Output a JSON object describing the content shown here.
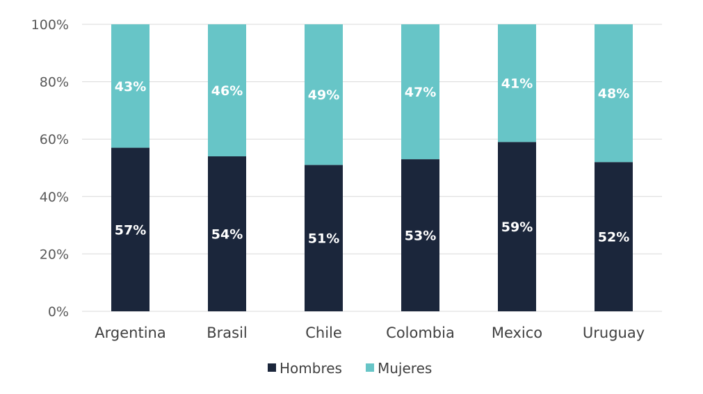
{
  "chart_data": {
    "type": "bar",
    "stacked": true,
    "stack_mode": "percent",
    "categories": [
      "Argentina",
      "Brasil",
      "Chile",
      "Colombia",
      "Mexico",
      "Uruguay"
    ],
    "series": [
      {
        "name": "Hombres",
        "color": "#1b263b",
        "values": [
          57,
          54,
          51,
          53,
          59,
          52
        ]
      },
      {
        "name": "Mujeres",
        "color": "#67c5c7",
        "values": [
          43,
          46,
          49,
          47,
          41,
          48
        ]
      }
    ],
    "data_labels": {
      "Hombres": [
        "57%",
        "54%",
        "51%",
        "53%",
        "59%",
        "52%"
      ],
      "Mujeres": [
        "43%",
        "46%",
        "49%",
        "47%",
        "41%",
        "48%"
      ]
    },
    "ylim": [
      0,
      100
    ],
    "yticks": [
      0,
      20,
      40,
      60,
      80,
      100
    ],
    "ytick_labels": [
      "0%",
      "20%",
      "40%",
      "60%",
      "80%",
      "100%"
    ],
    "grid": true,
    "legend_position": "bottom"
  }
}
